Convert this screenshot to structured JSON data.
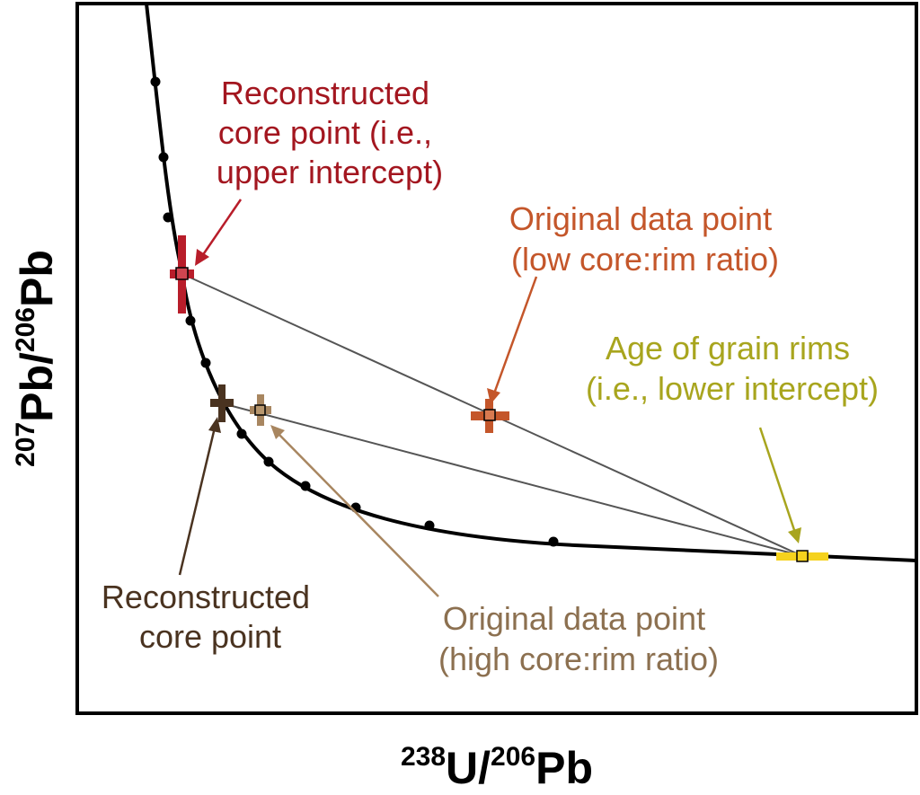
{
  "axes": {
    "x_label": {
      "sup1": "238",
      "base1": "U/",
      "sup2": "206",
      "base2": "Pb"
    },
    "y_label": {
      "sup1": "207",
      "base1": "Pb/",
      "sup2": "206",
      "base2": "Pb"
    }
  },
  "annotations": {
    "reconstructed_upper": {
      "lines": [
        "Reconstructed",
        "core point (i.e.,",
        "upper intercept)"
      ],
      "color": "#a3161f"
    },
    "original_low": {
      "lines": [
        "Original data point",
        "(low core:rim ratio)"
      ],
      "color": "#c4562a"
    },
    "rim_age": {
      "lines": [
        "Age of grain rims",
        "(i.e., lower intercept)"
      ],
      "color": "#a8a51e"
    },
    "reconstructed_core": {
      "lines": [
        "Reconstructed",
        "core point"
      ],
      "color": "#4a3320"
    },
    "original_high": {
      "lines": [
        "Original data point",
        "(high core:rim ratio)"
      ],
      "color": "#8c7050"
    }
  },
  "colors": {
    "concordia": "#000000",
    "discordia": "#555555",
    "upper_intercept": "#b81d2a",
    "low_ratio_point": "#c4562a",
    "reconstructed_core_point": "#4a3320",
    "high_ratio_point": "#a88660",
    "lower_intercept": "#f5d21e"
  }
}
